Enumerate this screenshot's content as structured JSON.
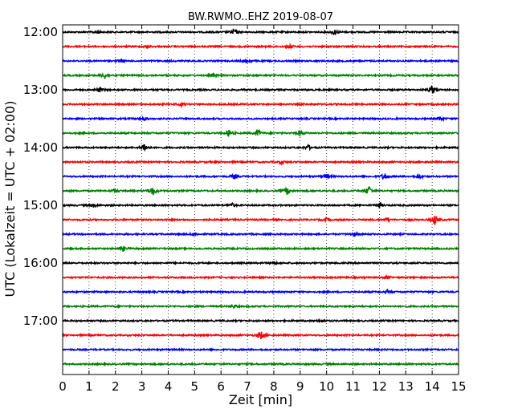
{
  "chart_data": {
    "type": "line",
    "title": "BW.RWMO..EHZ 2019-08-07",
    "xlabel": "Zeit  [min]",
    "ylabel": "UTC (Lokalzeit = UTC + 02:00)",
    "xlim": [
      0,
      15
    ],
    "x_ticks": [
      "0",
      "1",
      "2",
      "3",
      "4",
      "5",
      "6",
      "7",
      "8",
      "9",
      "10",
      "11",
      "12",
      "13",
      "14",
      "15"
    ],
    "y_ticks": [
      "12:00",
      "13:00",
      "14:00",
      "15:00",
      "16:00",
      "17:00"
    ],
    "grid": {
      "vertical_dotted": true
    },
    "line_colors": [
      "#000000",
      "#ff0000",
      "#0000ff",
      "#008000"
    ],
    "traces": [
      {
        "start": "12:00",
        "events": [
          {
            "t": 6.5,
            "amp": 5
          },
          {
            "t": 10.3,
            "amp": 4
          },
          {
            "t": 1.3,
            "amp": 2
          }
        ]
      },
      {
        "start": "12:15",
        "events": [
          {
            "t": 3.2,
            "amp": 2
          },
          {
            "t": 8.6,
            "amp": 2
          }
        ]
      },
      {
        "start": "12:30",
        "events": [
          {
            "t": 7.0,
            "amp": 3
          },
          {
            "t": 2.2,
            "amp": 2
          }
        ]
      },
      {
        "start": "12:45",
        "events": [
          {
            "t": 1.6,
            "amp": 4
          },
          {
            "t": 5.7,
            "amp": 2
          }
        ]
      },
      {
        "start": "13:00",
        "events": [
          {
            "t": 1.4,
            "amp": 3
          },
          {
            "t": 14.0,
            "amp": 6
          }
        ]
      },
      {
        "start": "13:15",
        "events": [
          {
            "t": 4.5,
            "amp": 2
          }
        ]
      },
      {
        "start": "13:30",
        "events": [
          {
            "t": 3.1,
            "amp": 2
          },
          {
            "t": 14.3,
            "amp": 3
          }
        ]
      },
      {
        "start": "13:45",
        "events": [
          {
            "t": 6.3,
            "amp": 5
          },
          {
            "t": 7.4,
            "amp": 4
          },
          {
            "t": 9.0,
            "amp": 4
          }
        ]
      },
      {
        "start": "14:00",
        "events": [
          {
            "t": 3.1,
            "amp": 6
          },
          {
            "t": 9.3,
            "amp": 3
          }
        ]
      },
      {
        "start": "14:15",
        "events": [
          {
            "t": 8.3,
            "amp": 2
          }
        ]
      },
      {
        "start": "14:30",
        "events": [
          {
            "t": 6.5,
            "amp": 3
          },
          {
            "t": 10.0,
            "amp": 3
          },
          {
            "t": 12.2,
            "amp": 5
          },
          {
            "t": 13.5,
            "amp": 3
          }
        ]
      },
      {
        "start": "14:45",
        "events": [
          {
            "t": 3.4,
            "amp": 7
          },
          {
            "t": 8.5,
            "amp": 5
          },
          {
            "t": 11.6,
            "amp": 7
          },
          {
            "t": 2.0,
            "amp": 2
          }
        ]
      },
      {
        "start": "15:00",
        "events": [
          {
            "t": 6.4,
            "amp": 3
          },
          {
            "t": 12.0,
            "amp": 3
          },
          {
            "t": 1.2,
            "amp": 2
          }
        ]
      },
      {
        "start": "15:15",
        "events": [
          {
            "t": 14.1,
            "amp": 7
          },
          {
            "t": 10.0,
            "amp": 2
          },
          {
            "t": 12.3,
            "amp": 2
          }
        ]
      },
      {
        "start": "15:30",
        "events": [
          {
            "t": 11.0,
            "amp": 3
          },
          {
            "t": 5.0,
            "amp": 2
          }
        ]
      },
      {
        "start": "15:45",
        "events": [
          {
            "t": 2.3,
            "amp": 3
          }
        ]
      },
      {
        "start": "16:00",
        "events": [
          {
            "t": 8.0,
            "amp": 2
          }
        ]
      },
      {
        "start": "16:15",
        "events": [
          {
            "t": 12.3,
            "amp": 2
          }
        ]
      },
      {
        "start": "16:30",
        "events": [
          {
            "t": 12.3,
            "amp": 2
          }
        ]
      },
      {
        "start": "16:45",
        "events": [
          {
            "t": 6.5,
            "amp": 2
          }
        ]
      },
      {
        "start": "17:00",
        "events": [
          {
            "t": 9.8,
            "amp": 2
          }
        ]
      },
      {
        "start": "17:15",
        "events": [
          {
            "t": 7.5,
            "amp": 6
          }
        ]
      },
      {
        "start": "17:30",
        "events": []
      },
      {
        "start": "17:45",
        "events": []
      }
    ]
  }
}
